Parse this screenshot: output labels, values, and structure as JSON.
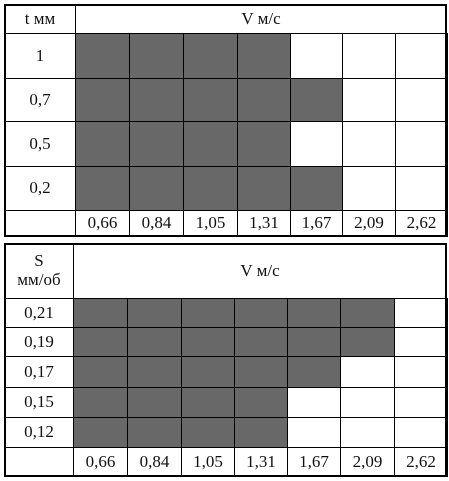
{
  "tables": [
    {
      "row_header": [
        "t мм"
      ],
      "col_header": "V м/с",
      "rows": [
        {
          "label": "1",
          "shaded": [
            true,
            true,
            true,
            true,
            false,
            false,
            false
          ]
        },
        {
          "label": "0,7",
          "shaded": [
            true,
            true,
            true,
            true,
            true,
            false,
            false
          ]
        },
        {
          "label": "0,5",
          "shaded": [
            true,
            true,
            true,
            true,
            false,
            false,
            false
          ]
        },
        {
          "label": "0,2",
          "shaded": [
            true,
            true,
            true,
            true,
            true,
            false,
            false
          ]
        }
      ],
      "speeds": [
        "0,66",
        "0,84",
        "1,05",
        "1,31",
        "1,67",
        "2,09",
        "2,62"
      ]
    },
    {
      "row_header": [
        "S",
        "мм/об"
      ],
      "col_header": "V м/с",
      "rows": [
        {
          "label": "0,21",
          "shaded": [
            true,
            true,
            true,
            true,
            true,
            true,
            false
          ]
        },
        {
          "label": "0,19",
          "shaded": [
            true,
            true,
            true,
            true,
            true,
            true,
            false
          ]
        },
        {
          "label": "0,17",
          "shaded": [
            true,
            true,
            true,
            true,
            true,
            false,
            false
          ]
        },
        {
          "label": "0,15",
          "shaded": [
            true,
            true,
            true,
            true,
            false,
            false,
            false
          ]
        },
        {
          "label": "0,12",
          "shaded": [
            true,
            true,
            true,
            true,
            false,
            false,
            false
          ]
        }
      ],
      "speeds": [
        "0,66",
        "0,84",
        "1,05",
        "1,31",
        "1,67",
        "2,09",
        "2,62"
      ]
    }
  ]
}
